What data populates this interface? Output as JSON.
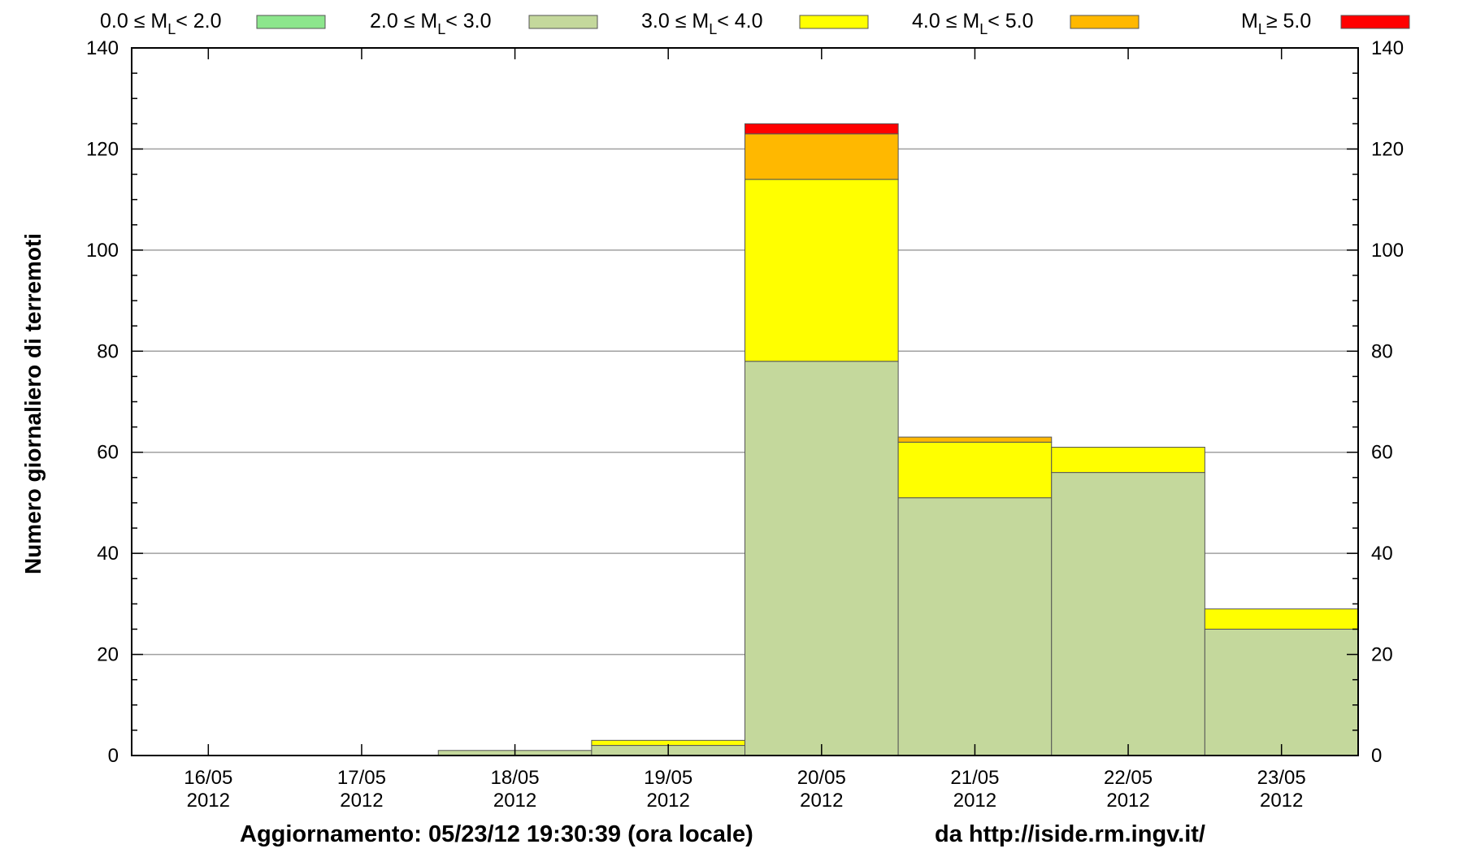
{
  "chart_data": {
    "type": "bar",
    "stacked": true,
    "ylabel": "Numero giornaliero di terremoti",
    "ylim": [
      0,
      140
    ],
    "yticks": [
      0,
      20,
      40,
      60,
      80,
      100,
      120,
      140
    ],
    "grid": true,
    "legend_position": "top",
    "categories": [
      {
        "day": "16/05",
        "year": "2012"
      },
      {
        "day": "17/05",
        "year": "2012"
      },
      {
        "day": "18/05",
        "year": "2012"
      },
      {
        "day": "19/05",
        "year": "2012"
      },
      {
        "day": "20/05",
        "year": "2012"
      },
      {
        "day": "21/05",
        "year": "2012"
      },
      {
        "day": "22/05",
        "year": "2012"
      },
      {
        "day": "23/05",
        "year": "2012"
      }
    ],
    "series": [
      {
        "name_pre": "0.0 ≤ M",
        "name_sub": "L",
        "name_post": "< 2.0",
        "color": "#8ce68c",
        "values": [
          0,
          0,
          0,
          0,
          0,
          0,
          0,
          0
        ]
      },
      {
        "name_pre": "2.0 ≤ M",
        "name_sub": "L",
        "name_post": "< 3.0",
        "color": "#c4d89c",
        "values": [
          0,
          0,
          1,
          2,
          78,
          51,
          56,
          25
        ]
      },
      {
        "name_pre": "3.0 ≤ M",
        "name_sub": "L",
        "name_post": "< 4.0",
        "color": "#ffff00",
        "values": [
          0,
          0,
          0,
          1,
          36,
          11,
          5,
          4
        ]
      },
      {
        "name_pre": "4.0 ≤ M",
        "name_sub": "L",
        "name_post": "< 5.0",
        "color": "#ffb800",
        "values": [
          0,
          0,
          0,
          0,
          9,
          1,
          0,
          0
        ]
      },
      {
        "name_pre": "M",
        "name_sub": "L",
        "name_post": "≥ 5.0",
        "color": "#ff0000",
        "values": [
          0,
          0,
          0,
          0,
          2,
          0,
          0,
          0
        ]
      }
    ],
    "footer_update": "Aggiornamento: 05/23/12 19:30:39 (ora locale)",
    "footer_source": "da http://iside.rm.ingv.it/"
  }
}
